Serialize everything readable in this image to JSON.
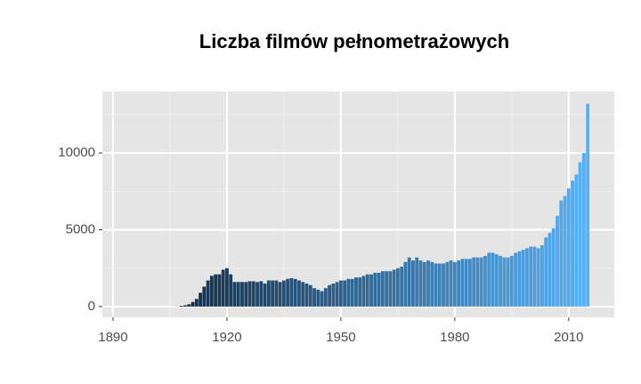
{
  "chart_data": {
    "type": "bar",
    "title": "Liczba filmów pełnometrażowych",
    "x": [
      1906,
      1907,
      1908,
      1909,
      1910,
      1911,
      1912,
      1913,
      1914,
      1915,
      1916,
      1917,
      1918,
      1919,
      1920,
      1921,
      1922,
      1923,
      1924,
      1925,
      1926,
      1927,
      1928,
      1929,
      1930,
      1931,
      1932,
      1933,
      1934,
      1935,
      1936,
      1937,
      1938,
      1939,
      1940,
      1941,
      1942,
      1943,
      1944,
      1945,
      1946,
      1947,
      1948,
      1949,
      1950,
      1951,
      1952,
      1953,
      1954,
      1955,
      1956,
      1957,
      1958,
      1959,
      1960,
      1961,
      1962,
      1963,
      1964,
      1965,
      1966,
      1967,
      1968,
      1969,
      1970,
      1971,
      1972,
      1973,
      1974,
      1975,
      1976,
      1977,
      1978,
      1979,
      1980,
      1981,
      1982,
      1983,
      1984,
      1985,
      1986,
      1987,
      1988,
      1989,
      1990,
      1991,
      1992,
      1993,
      1994,
      1995,
      1996,
      1997,
      1998,
      1999,
      2000,
      2001,
      2002,
      2003,
      2004,
      2005,
      2006,
      2007,
      2008,
      2009,
      2010,
      2011,
      2012,
      2013,
      2014,
      2015
    ],
    "values": [
      5,
      10,
      50,
      80,
      150,
      300,
      500,
      900,
      1300,
      1700,
      2000,
      2100,
      2100,
      2400,
      2500,
      2100,
      1600,
      1600,
      1600,
      1600,
      1650,
      1650,
      1600,
      1650,
      1500,
      1700,
      1700,
      1700,
      1600,
      1700,
      1800,
      1850,
      1800,
      1700,
      1600,
      1500,
      1400,
      1200,
      1100,
      1000,
      1200,
      1400,
      1500,
      1600,
      1700,
      1700,
      1800,
      1800,
      1900,
      1900,
      2000,
      2100,
      2100,
      2200,
      2200,
      2300,
      2300,
      2300,
      2400,
      2500,
      2600,
      2900,
      3200,
      3000,
      3200,
      3000,
      2900,
      3000,
      2900,
      2800,
      2800,
      2800,
      2900,
      3000,
      2900,
      3000,
      3100,
      3100,
      3100,
      3200,
      3200,
      3200,
      3300,
      3500,
      3500,
      3400,
      3300,
      3200,
      3200,
      3300,
      3500,
      3600,
      3700,
      3800,
      3900,
      3900,
      3800,
      4000,
      4500,
      4800,
      5100,
      5900,
      6900,
      7200,
      7700,
      8200,
      8600,
      9400,
      10000,
      13200
    ],
    "color_low": "#132B43",
    "color_high": "#56B1F7",
    "xlim": [
      1887.2,
      2022
    ],
    "xticks": [
      1890,
      1920,
      1950,
      1980,
      2010
    ],
    "xminor": [
      1905,
      1935,
      1965,
      1995
    ],
    "ylim": [
      -700,
      14000
    ],
    "yticks": [
      0,
      5000,
      10000
    ],
    "yminor": [
      2500,
      7500,
      12500
    ],
    "grid": true
  }
}
